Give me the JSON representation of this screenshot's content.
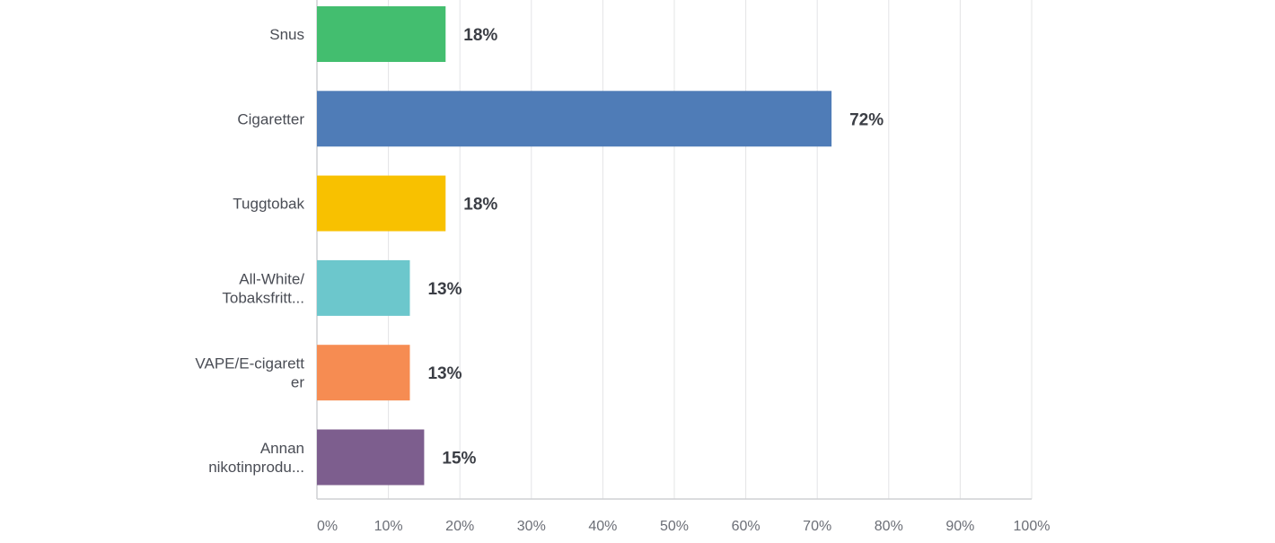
{
  "chart_data": {
    "type": "bar",
    "orientation": "horizontal",
    "categories": [
      [
        "Snus"
      ],
      [
        "Cigaretter"
      ],
      [
        "Tuggtobak"
      ],
      [
        "All-White/",
        "Tobaksfritt..."
      ],
      [
        "VAPE/E-cigarett",
        "er"
      ],
      [
        "Annan",
        "nikotinprodu..."
      ]
    ],
    "values": [
      18,
      72,
      18,
      13,
      13,
      15
    ],
    "value_labels": [
      "18%",
      "72%",
      "18%",
      "13%",
      "13%",
      "15%"
    ],
    "colors": [
      "#43be6f",
      "#4f7cb7",
      "#f8c100",
      "#6cc7cc",
      "#f68c52",
      "#7d5e8e"
    ],
    "x_ticks": [
      0,
      10,
      20,
      30,
      40,
      50,
      60,
      70,
      80,
      90,
      100
    ],
    "x_tick_labels": [
      "0%",
      "10%",
      "20%",
      "30%",
      "40%",
      "50%",
      "60%",
      "70%",
      "80%",
      "90%",
      "100%"
    ],
    "xlim": [
      0,
      100
    ],
    "grid": true,
    "title": "",
    "xlabel": "",
    "ylabel": ""
  }
}
